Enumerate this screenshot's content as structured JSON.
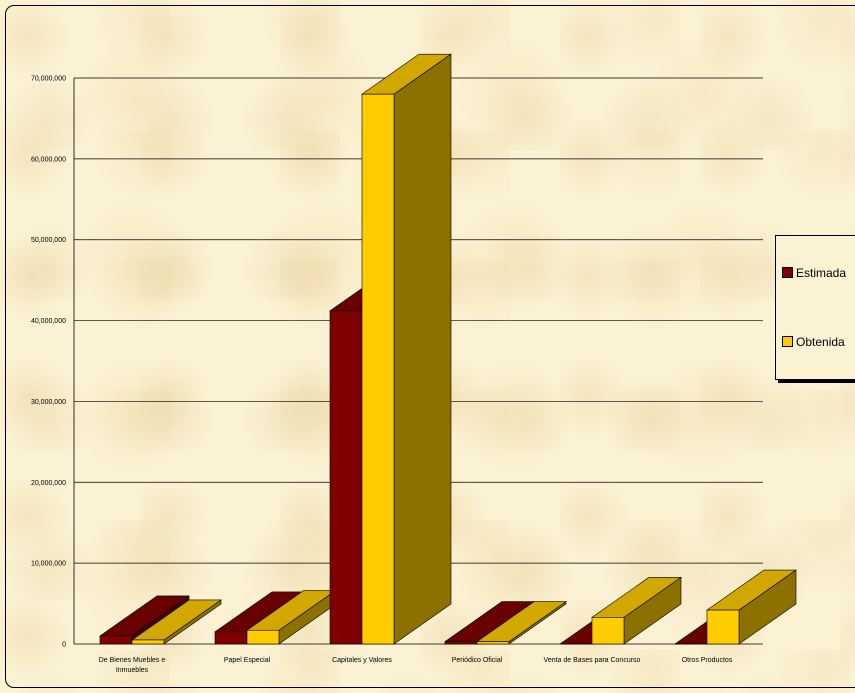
{
  "chart_data": {
    "type": "bar",
    "categories": [
      [
        "De Bienes Muebles e",
        "Inmuebles"
      ],
      [
        "Papel Especial"
      ],
      [
        "Capitales y Valores"
      ],
      [
        "Periódico Oficial"
      ],
      [
        "Venta de Bases para Concurso"
      ],
      [
        "Otros Productos"
      ]
    ],
    "series": [
      {
        "name": "Estimada",
        "color": "#800000",
        "values": [
          1000000,
          1500000,
          41200000,
          300000,
          0,
          0
        ]
      },
      {
        "name": "Obtenida",
        "color": "#ffcc00",
        "values": [
          500000,
          1700000,
          68000000,
          300000,
          3300000,
          4200000
        ]
      }
    ],
    "ylim": [
      0,
      70000000
    ],
    "yticks": [
      "0",
      "10,000,000",
      "20,000,000",
      "30,000,000",
      "40,000,000",
      "50,000,000",
      "60,000,000",
      "70,000,000"
    ],
    "grid": true,
    "legend_position": "right"
  }
}
